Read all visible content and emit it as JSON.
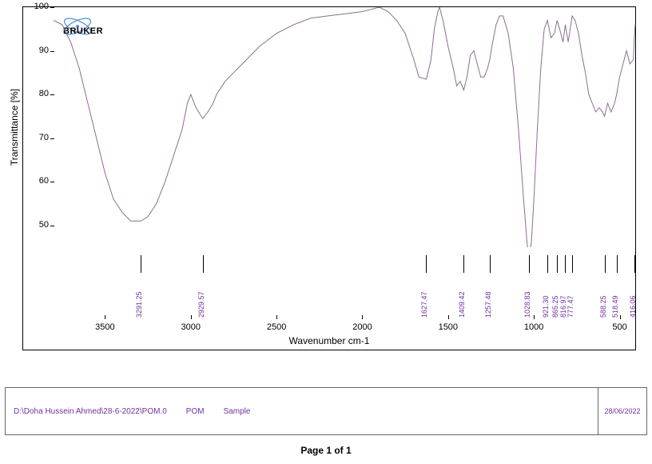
{
  "chart": {
    "type": "line",
    "title": "",
    "xlabel": "Wavenumber cm-1",
    "ylabel": "Transmittance [%]",
    "x_reversed": true,
    "xlim": [
      400,
      3800
    ],
    "ylim": [
      45,
      100
    ],
    "xticks": [
      3500,
      3000,
      2500,
      2000,
      1500,
      1000,
      500
    ],
    "yticks": [
      50,
      60,
      70,
      80,
      90,
      100
    ],
    "line_color": "#8a6f8f",
    "line_width": 1,
    "background_color": "#ffffff",
    "border_color": "#000000",
    "axis_fontsize": 12,
    "tick_fontsize": 11,
    "peak_label_color": "#7030a0",
    "data": [
      [
        3800,
        97
      ],
      [
        3750,
        96
      ],
      [
        3700,
        92
      ],
      [
        3650,
        86
      ],
      [
        3600,
        78
      ],
      [
        3550,
        70
      ],
      [
        3500,
        62
      ],
      [
        3450,
        56
      ],
      [
        3400,
        53
      ],
      [
        3350,
        51
      ],
      [
        3291,
        51
      ],
      [
        3250,
        52
      ],
      [
        3200,
        55
      ],
      [
        3150,
        60
      ],
      [
        3100,
        66
      ],
      [
        3050,
        72
      ],
      [
        3020,
        78
      ],
      [
        3000,
        80
      ],
      [
        2970,
        77
      ],
      [
        2930,
        74.5
      ],
      [
        2900,
        76
      ],
      [
        2870,
        78
      ],
      [
        2850,
        80
      ],
      [
        2800,
        83
      ],
      [
        2750,
        85
      ],
      [
        2700,
        87
      ],
      [
        2600,
        91
      ],
      [
        2500,
        94
      ],
      [
        2400,
        96
      ],
      [
        2300,
        97.5
      ],
      [
        2200,
        98
      ],
      [
        2100,
        98.5
      ],
      [
        2000,
        99
      ],
      [
        1950,
        99.5
      ],
      [
        1900,
        100
      ],
      [
        1850,
        99
      ],
      [
        1800,
        97
      ],
      [
        1750,
        94
      ],
      [
        1700,
        88
      ],
      [
        1670,
        84
      ],
      [
        1627,
        83.5
      ],
      [
        1600,
        88
      ],
      [
        1580,
        95
      ],
      [
        1560,
        99
      ],
      [
        1550,
        100
      ],
      [
        1530,
        97
      ],
      [
        1500,
        91
      ],
      [
        1470,
        86
      ],
      [
        1450,
        82
      ],
      [
        1430,
        83
      ],
      [
        1409,
        81
      ],
      [
        1390,
        84
      ],
      [
        1370,
        89
      ],
      [
        1350,
        90
      ],
      [
        1330,
        87
      ],
      [
        1310,
        84
      ],
      [
        1290,
        84
      ],
      [
        1270,
        86
      ],
      [
        1257,
        88
      ],
      [
        1240,
        92
      ],
      [
        1220,
        96
      ],
      [
        1200,
        98
      ],
      [
        1180,
        98
      ],
      [
        1150,
        94
      ],
      [
        1120,
        86
      ],
      [
        1090,
        72
      ],
      [
        1060,
        56
      ],
      [
        1040,
        46
      ],
      [
        1029,
        43
      ],
      [
        1015,
        46
      ],
      [
        1000,
        56
      ],
      [
        980,
        72
      ],
      [
        960,
        86
      ],
      [
        940,
        95
      ],
      [
        921,
        97
      ],
      [
        900,
        93
      ],
      [
        880,
        94
      ],
      [
        865,
        97
      ],
      [
        850,
        95
      ],
      [
        830,
        92
      ],
      [
        817,
        96
      ],
      [
        800,
        92
      ],
      [
        777,
        98
      ],
      [
        760,
        97
      ],
      [
        740,
        94
      ],
      [
        720,
        89
      ],
      [
        700,
        85
      ],
      [
        680,
        80
      ],
      [
        660,
        78
      ],
      [
        640,
        76
      ],
      [
        620,
        77
      ],
      [
        600,
        76
      ],
      [
        588,
        75
      ],
      [
        570,
        78
      ],
      [
        550,
        76
      ],
      [
        530,
        78
      ],
      [
        518,
        80
      ],
      [
        500,
        84
      ],
      [
        480,
        87
      ],
      [
        460,
        90
      ],
      [
        440,
        87
      ],
      [
        420,
        88
      ],
      [
        416,
        92
      ],
      [
        410,
        96
      ]
    ],
    "peaks": [
      {
        "x": 3291.25,
        "label": "3291.25"
      },
      {
        "x": 2929.57,
        "label": "2929.57"
      },
      {
        "x": 1627.47,
        "label": "1627.47"
      },
      {
        "x": 1409.42,
        "label": "1409.42"
      },
      {
        "x": 1257.48,
        "label": "1257.48"
      },
      {
        "x": 1028.83,
        "label": "1028.83"
      },
      {
        "x": 921.3,
        "label": "921.30"
      },
      {
        "x": 865.25,
        "label": "865.25"
      },
      {
        "x": 816.97,
        "label": "816.97"
      },
      {
        "x": 777.47,
        "label": "777.47"
      },
      {
        "x": 588.25,
        "label": "588.25"
      },
      {
        "x": 518.49,
        "label": "518.49"
      },
      {
        "x": 416.06,
        "label": "416.06"
      }
    ]
  },
  "logo": {
    "text": "BRUKER",
    "ellipse_color": "#4a90d9",
    "text_color": "#000000"
  },
  "info": {
    "filepath": "D:\\Doha Hussein Ahmed\\28-6-2022\\POM.0",
    "sample_name": "POM",
    "sample_type": "Sample",
    "date": "28/06/2022"
  },
  "footer": {
    "page_text": "Page 1 of 1"
  }
}
